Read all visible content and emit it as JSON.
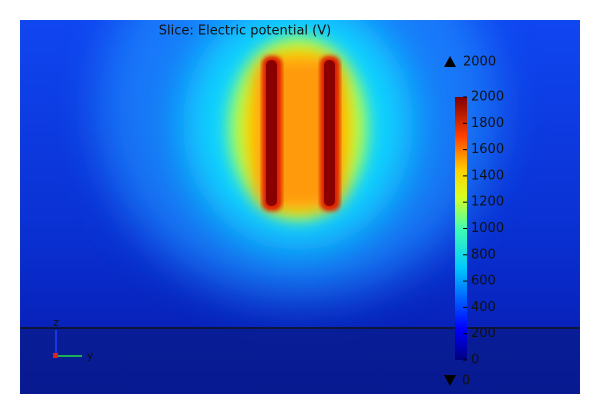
{
  "chart_data": {
    "type": "slice",
    "title": "Slice: Electric potential (V)",
    "colorbar": {
      "lim": [
        0,
        2000
      ],
      "ticks": [
        0,
        200,
        400,
        600,
        800,
        1000,
        1200,
        1400,
        1600,
        1800,
        2000
      ],
      "max": 2000,
      "min": 0
    },
    "axis_labels": {
      "vertical": "z",
      "horizontal": "y"
    }
  }
}
